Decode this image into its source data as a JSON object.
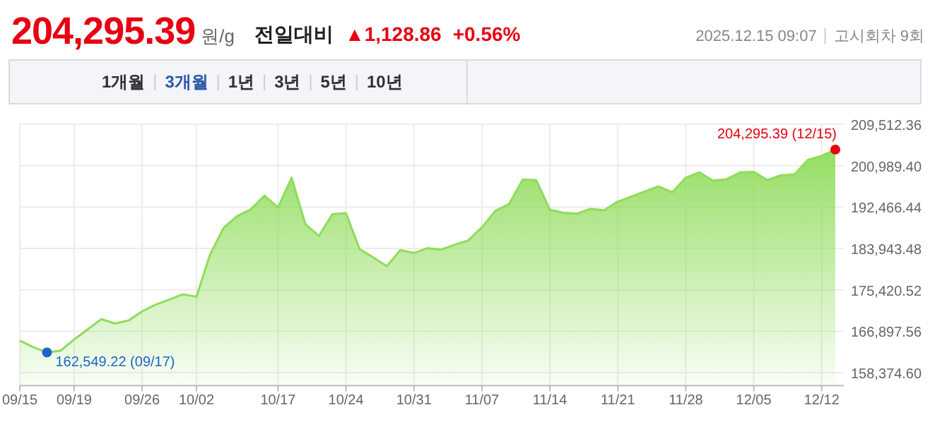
{
  "chart_data": {
    "type": "area",
    "title": "204,295.39",
    "subtitle": "원/g",
    "annotations": [
      "전일대비",
      "▲1,128.86",
      "+0.56%",
      "2025.12.15 09:07",
      "고시회차 9회",
      "1개월",
      "3개월",
      "1년",
      "3년",
      "5년",
      "10년",
      "162,549.22 (09/17)",
      "204,295.39 (12/15)"
    ],
    "categories": [
      "09/15",
      null,
      null,
      null,
      "09/19",
      null,
      null,
      null,
      null,
      "09/26",
      null,
      null,
      null,
      "10/02",
      null,
      null,
      null,
      null,
      null,
      "10/17",
      null,
      null,
      null,
      null,
      "10/24",
      null,
      null,
      null,
      null,
      "10/31",
      null,
      null,
      null,
      null,
      "11/07",
      null,
      null,
      null,
      null,
      "11/14",
      null,
      null,
      null,
      null,
      "11/21",
      null,
      null,
      null,
      null,
      "11/28",
      null,
      null,
      null,
      null,
      "12/05",
      null,
      null,
      null,
      null,
      "12/12",
      null
    ],
    "series": [
      {
        "color": "#8fdc5a",
        "values": [
          165000,
          163600,
          162549.22,
          162900,
          165200,
          167300,
          169400,
          168500,
          169100,
          171000,
          172400,
          173400,
          174500,
          174000,
          182700,
          188200,
          190600,
          192000,
          194800,
          192400,
          198500,
          189000,
          186500,
          191000,
          191200,
          183800,
          182100,
          180300,
          183600,
          183000,
          184000,
          183700,
          184700,
          185600,
          188300,
          191700,
          193100,
          198100,
          198000,
          191900,
          191300,
          191100,
          192100,
          191800,
          193600,
          194600,
          195700,
          196700,
          195500,
          198500,
          199600,
          197900,
          198200,
          199600,
          199700,
          198000,
          199000,
          199200,
          202200,
          203000,
          204295.39
        ]
      },
      {
        "type": "scatter",
        "marker": "circle",
        "color": "#1a66c8",
        "values": [
          null,
          null,
          162549.22,
          null,
          null,
          null,
          null,
          null,
          null,
          null,
          null,
          null,
          null,
          null,
          null,
          null,
          null,
          null,
          null,
          null,
          null,
          null,
          null,
          null,
          null,
          null,
          null,
          null,
          null,
          null,
          null,
          null,
          null,
          null,
          null,
          null,
          null,
          null,
          null,
          null,
          null,
          null,
          null,
          null,
          null,
          null,
          null,
          null,
          null,
          null,
          null,
          null,
          null,
          null,
          null,
          null,
          null,
          null,
          null,
          null,
          null
        ]
      },
      {
        "type": "scatter",
        "marker": "circle",
        "color": "#e60012",
        "values": [
          null,
          null,
          null,
          null,
          null,
          null,
          null,
          null,
          null,
          null,
          null,
          null,
          null,
          null,
          null,
          null,
          null,
          null,
          null,
          null,
          null,
          null,
          null,
          null,
          null,
          null,
          null,
          null,
          null,
          null,
          null,
          null,
          null,
          null,
          null,
          null,
          null,
          null,
          null,
          null,
          null,
          null,
          null,
          null,
          null,
          null,
          null,
          null,
          null,
          null,
          null,
          null,
          null,
          null,
          null,
          null,
          null,
          null,
          null,
          null,
          204295.39
        ]
      }
    ],
    "ylim": [
      155700,
      209512.36
    ],
    "yticks": [
      {
        "value": 158374.6,
        "label": "158,374.60"
      },
      {
        "value": 166897.56,
        "label": "166,897.56"
      },
      {
        "value": 175420.52,
        "label": "175,420.52"
      },
      {
        "value": 183943.48,
        "label": "183,943.48"
      },
      {
        "value": 192466.44,
        "label": "192,466.44"
      },
      {
        "value": 200989.4,
        "label": "200,989.40"
      },
      {
        "value": 209512.36,
        "label": "209,512.36"
      }
    ],
    "grid": true
  }
}
